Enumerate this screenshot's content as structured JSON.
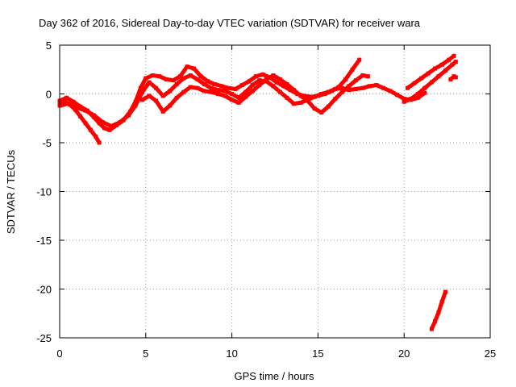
{
  "chart_data": {
    "type": "scatter",
    "title": "Day 362 of 2016, Sidereal Day-to-day VTEC variation (SDTVAR) for receiver wara",
    "xlabel": "GPS time / hours",
    "ylabel": "SDTVAR / TECUs",
    "xlim": [
      0,
      25
    ],
    "ylim": [
      -25,
      5
    ],
    "xticks": [
      0,
      5,
      10,
      15,
      20,
      25
    ],
    "yticks": [
      5,
      0,
      -5,
      -10,
      -15,
      -20,
      -25
    ],
    "grid": true,
    "series": [
      {
        "name": "trace-a",
        "color": "#ff0000",
        "points": [
          [
            0.0,
            -1.0
          ],
          [
            0.3,
            -0.8
          ],
          [
            0.6,
            -1.1
          ],
          [
            0.9,
            -1.6
          ],
          [
            1.2,
            -2.3
          ],
          [
            1.5,
            -3.0
          ],
          [
            1.8,
            -3.7
          ],
          [
            2.1,
            -4.4
          ],
          [
            2.3,
            -5.0
          ]
        ]
      },
      {
        "name": "trace-b",
        "color": "#ff0000",
        "points": [
          [
            0.0,
            -0.7
          ],
          [
            0.4,
            -0.4
          ],
          [
            0.8,
            -0.8
          ],
          [
            1.2,
            -1.3
          ],
          [
            1.6,
            -1.7
          ],
          [
            2.0,
            -2.4
          ],
          [
            2.3,
            -3.0
          ],
          [
            2.6,
            -3.5
          ],
          [
            2.9,
            -3.7
          ],
          [
            3.3,
            -3.2
          ],
          [
            3.7,
            -2.7
          ],
          [
            4.1,
            -1.8
          ],
          [
            4.4,
            -0.8
          ],
          [
            4.7,
            0.6
          ],
          [
            5.0,
            1.6
          ],
          [
            5.4,
            1.9
          ],
          [
            5.8,
            1.8
          ],
          [
            6.2,
            1.5
          ],
          [
            6.6,
            1.4
          ],
          [
            7.0,
            1.8
          ],
          [
            7.4,
            2.8
          ],
          [
            7.8,
            2.6
          ],
          [
            8.2,
            1.8
          ],
          [
            8.6,
            1.3
          ],
          [
            9.0,
            1.0
          ],
          [
            9.4,
            0.8
          ],
          [
            9.8,
            0.6
          ],
          [
            10.2,
            0.5
          ],
          [
            10.6,
            0.9
          ],
          [
            11.0,
            1.3
          ],
          [
            11.4,
            1.8
          ],
          [
            11.8,
            2.0
          ],
          [
            12.2,
            1.7
          ],
          [
            12.6,
            1.2
          ],
          [
            13.0,
            0.8
          ],
          [
            13.4,
            0.4
          ],
          [
            13.8,
            0.0
          ],
          [
            14.2,
            -0.2
          ],
          [
            14.6,
            -0.3
          ],
          [
            15.0,
            -0.2
          ],
          [
            15.4,
            0.0
          ],
          [
            15.8,
            0.3
          ],
          [
            16.2,
            0.7
          ],
          [
            16.6,
            1.5
          ],
          [
            17.0,
            2.5
          ],
          [
            17.4,
            3.5
          ]
        ]
      },
      {
        "name": "trace-c",
        "color": "#ff0000",
        "points": [
          [
            0.0,
            -1.2
          ],
          [
            0.5,
            -1.0
          ],
          [
            1.0,
            -1.4
          ],
          [
            1.5,
            -1.7
          ],
          [
            2.0,
            -2.2
          ],
          [
            2.5,
            -2.9
          ],
          [
            3.0,
            -3.3
          ],
          [
            3.5,
            -2.9
          ],
          [
            4.0,
            -2.2
          ],
          [
            4.4,
            -1.2
          ],
          [
            4.8,
            0.2
          ],
          [
            5.2,
            1.2
          ],
          [
            5.6,
            0.6
          ],
          [
            6.0,
            -0.2
          ],
          [
            6.4,
            0.3
          ],
          [
            6.8,
            1.0
          ],
          [
            7.2,
            1.6
          ],
          [
            7.6,
            1.9
          ],
          [
            8.0,
            1.5
          ],
          [
            8.4,
            1.0
          ],
          [
            8.8,
            0.6
          ],
          [
            9.2,
            0.4
          ],
          [
            9.6,
            0.3
          ],
          [
            10.0,
            0.0
          ],
          [
            10.4,
            -0.4
          ],
          [
            10.8,
            0.2
          ],
          [
            11.2,
            0.9
          ],
          [
            11.6,
            1.4
          ],
          [
            12.0,
            1.3
          ],
          [
            12.4,
            0.8
          ],
          [
            12.8,
            0.2
          ],
          [
            13.2,
            -0.4
          ],
          [
            13.6,
            -1.0
          ],
          [
            14.0,
            -0.9
          ],
          [
            14.4,
            -0.6
          ],
          [
            14.8,
            -0.3
          ],
          [
            15.2,
            0.0
          ],
          [
            15.6,
            0.2
          ],
          [
            16.0,
            0.5
          ],
          [
            16.4,
            0.6
          ],
          [
            16.8,
            0.4
          ],
          [
            17.2,
            0.5
          ],
          [
            17.6,
            0.6
          ],
          [
            18.0,
            0.8
          ],
          [
            18.4,
            0.9
          ],
          [
            18.8,
            0.6
          ],
          [
            19.2,
            0.3
          ],
          [
            19.6,
            -0.1
          ],
          [
            20.0,
            -0.5
          ],
          [
            20.4,
            -0.6
          ],
          [
            20.8,
            -0.4
          ],
          [
            21.2,
            0.1
          ]
        ]
      },
      {
        "name": "trace-d",
        "color": "#ff0000",
        "points": [
          [
            4.8,
            -0.6
          ],
          [
            5.2,
            -0.2
          ],
          [
            5.6,
            -0.7
          ],
          [
            6.0,
            -1.8
          ],
          [
            6.4,
            -1.2
          ],
          [
            6.8,
            -0.4
          ],
          [
            7.2,
            0.2
          ],
          [
            7.6,
            0.7
          ],
          [
            8.0,
            0.6
          ],
          [
            8.4,
            0.3
          ],
          [
            8.8,
            0.2
          ],
          [
            9.2,
            0.0
          ],
          [
            9.6,
            -0.2
          ],
          [
            10.0,
            -0.6
          ],
          [
            10.4,
            -0.9
          ],
          [
            10.8,
            -0.3
          ],
          [
            11.2,
            0.3
          ],
          [
            11.6,
            0.9
          ],
          [
            12.0,
            1.5
          ],
          [
            12.4,
            1.9
          ],
          [
            12.8,
            1.5
          ],
          [
            13.2,
            1.0
          ],
          [
            13.6,
            0.4
          ],
          [
            14.0,
            -0.2
          ],
          [
            14.4,
            -0.7
          ],
          [
            14.8,
            -1.5
          ],
          [
            15.2,
            -1.9
          ],
          [
            15.6,
            -1.3
          ],
          [
            16.0,
            -0.5
          ],
          [
            16.4,
            0.2
          ],
          [
            16.8,
            0.8
          ],
          [
            17.2,
            1.4
          ],
          [
            17.6,
            1.9
          ],
          [
            17.9,
            1.8
          ]
        ]
      },
      {
        "name": "trace-e",
        "color": "#ff0000",
        "points": [
          [
            20.2,
            0.6
          ],
          [
            20.6,
            1.1
          ],
          [
            21.0,
            1.6
          ],
          [
            21.4,
            2.1
          ],
          [
            21.8,
            2.6
          ],
          [
            22.2,
            3.0
          ],
          [
            22.6,
            3.5
          ],
          [
            22.9,
            3.9
          ]
        ]
      },
      {
        "name": "trace-f",
        "color": "#ff0000",
        "points": [
          [
            20.0,
            -0.8
          ],
          [
            20.4,
            -0.5
          ],
          [
            20.8,
            0.0
          ],
          [
            21.2,
            0.6
          ],
          [
            21.6,
            1.2
          ],
          [
            22.0,
            1.8
          ],
          [
            22.4,
            2.4
          ],
          [
            22.8,
            3.0
          ],
          [
            23.0,
            3.3
          ]
        ]
      },
      {
        "name": "trace-g",
        "color": "#ff0000",
        "points": [
          [
            22.7,
            1.5
          ],
          [
            22.9,
            1.8
          ],
          [
            23.0,
            1.7
          ]
        ]
      },
      {
        "name": "trace-h",
        "color": "#ff0000",
        "points": [
          [
            21.6,
            -24.1
          ],
          [
            21.8,
            -23.3
          ],
          [
            22.0,
            -22.4
          ],
          [
            22.2,
            -21.3
          ],
          [
            22.4,
            -20.3
          ]
        ]
      }
    ]
  }
}
